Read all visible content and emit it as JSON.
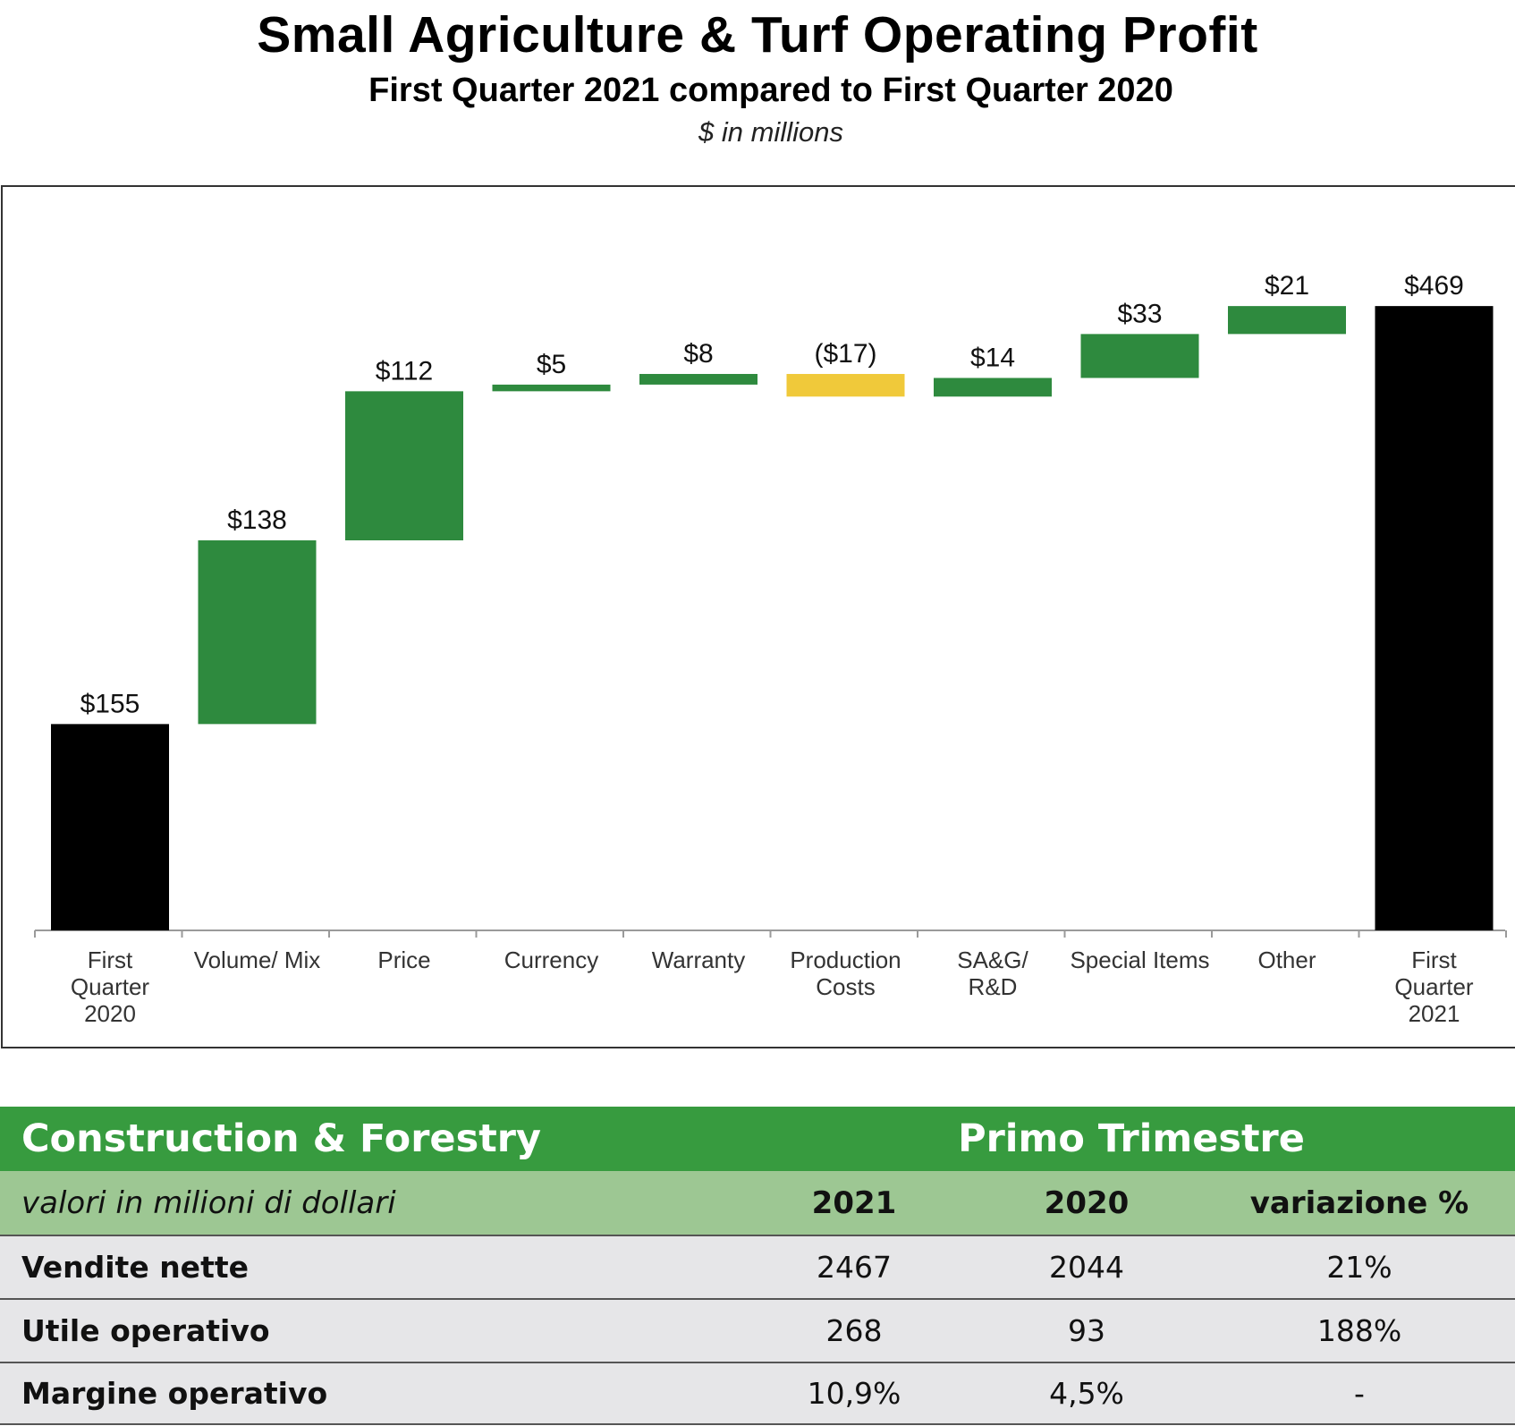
{
  "header": {
    "title": "Small Agriculture & Turf Operating Profit",
    "subtitle": "First Quarter 2021 compared to First Quarter 2020",
    "unit": "$ in millions"
  },
  "chart_data": {
    "type": "bar",
    "subtype": "waterfall",
    "title": "Small Agriculture & Turf Operating Profit",
    "subtitle": "First Quarter 2021 compared to First Quarter 2020",
    "xlabel": "",
    "ylabel": "$ in millions",
    "ylim": [
      0,
      500
    ],
    "grid": false,
    "colors": {
      "total": "#000000",
      "increase": "#2e8a3e",
      "decrease": "#f0c93a"
    },
    "categories": [
      [
        "First",
        "Quarter",
        "2020"
      ],
      [
        "Volume/ Mix"
      ],
      [
        "Price"
      ],
      [
        "Currency"
      ],
      [
        "Warranty"
      ],
      [
        "Production",
        "Costs"
      ],
      [
        "SA&G/",
        "R&D"
      ],
      [
        "Special Items"
      ],
      [
        "Other"
      ],
      [
        "First",
        "Quarter",
        "2021"
      ]
    ],
    "values": [
      155,
      138,
      112,
      5,
      8,
      -17,
      14,
      33,
      21,
      469
    ],
    "kinds": [
      "total",
      "delta",
      "delta",
      "delta",
      "delta",
      "delta",
      "delta",
      "delta",
      "delta",
      "total"
    ],
    "data_labels": [
      "$155",
      "$138",
      "$112",
      "$5",
      "$8",
      "($17)",
      "$14",
      "$33",
      "$21",
      "$469"
    ]
  },
  "table": {
    "segment": "Construction & Forestry",
    "period": "Primo Trimestre",
    "units_note": "valori in milioni di dollari",
    "columns": [
      "2021",
      "2020",
      "variazione %"
    ],
    "rows": [
      {
        "label": "Vendite nette",
        "y2021": "2467",
        "y2020": "2044",
        "change": "21%"
      },
      {
        "label": "Utile operativo",
        "y2021": "268",
        "y2020": "93",
        "change": "188%"
      },
      {
        "label": "Margine operativo",
        "y2021": "10,9%",
        "y2020": "4,5%",
        "change": "-"
      }
    ]
  }
}
